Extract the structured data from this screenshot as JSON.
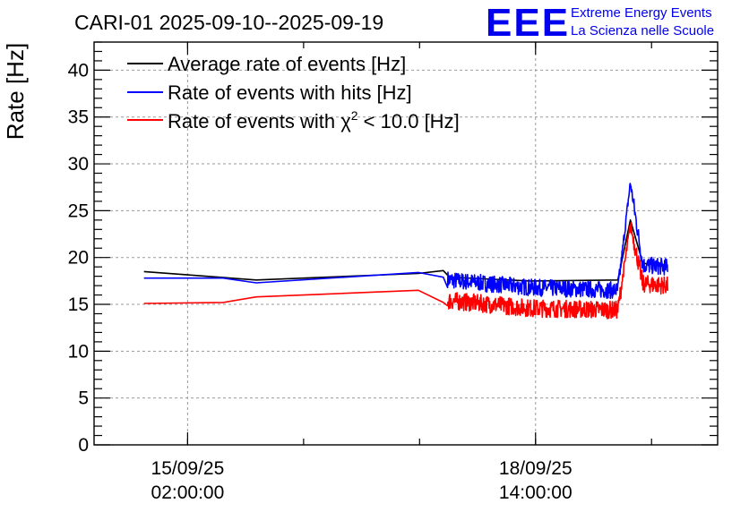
{
  "header": {
    "title": "CARI-01 2025-09-10--2025-09-19",
    "logo_text": "EEE",
    "logo_line1": "Extreme Energy Events",
    "logo_line2": "La Scienza nelle Scuole"
  },
  "chart_data": {
    "type": "line",
    "title": "CARI-01 2025-09-10--2025-09-19",
    "xlabel": "",
    "ylabel": "Rate [Hz]",
    "ylim": [
      0,
      43
    ],
    "xlim": [
      0,
      100
    ],
    "yticks": [
      0,
      5,
      10,
      15,
      20,
      25,
      30,
      35,
      40
    ],
    "xticks": [
      {
        "pos": 15,
        "date": "15/09/25",
        "time": "02:00:00"
      },
      {
        "pos": 70.8,
        "date": "18/09/25",
        "time": "14:00:00"
      }
    ],
    "grid": true,
    "legend_position": "top-left",
    "legend": {
      "avg": "Average rate of events [Hz]",
      "hits": "Rate of events with hits [Hz]",
      "chi_prefix": "Rate of events with χ",
      "chi_sup": "2",
      "chi_suffix": " < 10.0 [Hz]"
    },
    "series": [
      {
        "name": "Average rate of events [Hz]",
        "color": "#000000",
        "x": [
          8,
          26,
          52,
          56,
          57,
          70,
          84,
          86,
          88,
          92
        ],
        "y": [
          18.5,
          17.6,
          18.3,
          18.6,
          17.9,
          17.5,
          17.6,
          24,
          19.4,
          19.0
        ]
      },
      {
        "name": "Rate of events with hits [Hz]",
        "color": "#0000ff",
        "x": [
          8,
          20.7,
          26,
          52,
          56,
          57,
          70,
          84,
          86,
          88,
          92
        ],
        "y": [
          17.8,
          17.8,
          17.3,
          18.4,
          17.9,
          17.6,
          16.8,
          16.5,
          28.0,
          19.2,
          19.0
        ],
        "noise": 1.8,
        "noise_from": 56.7
      },
      {
        "name": "Rate of events with χ2 < 10.0 [Hz]",
        "color": "#ff0000",
        "x": [
          8,
          20.7,
          26,
          52,
          56,
          57,
          70,
          84,
          86,
          88,
          92
        ],
        "y": [
          15.1,
          15.2,
          15.8,
          16.5,
          15.2,
          15.4,
          14.6,
          14.4,
          23.5,
          17.2,
          17.0
        ],
        "noise": 1.9,
        "noise_from": 56.7
      }
    ]
  }
}
